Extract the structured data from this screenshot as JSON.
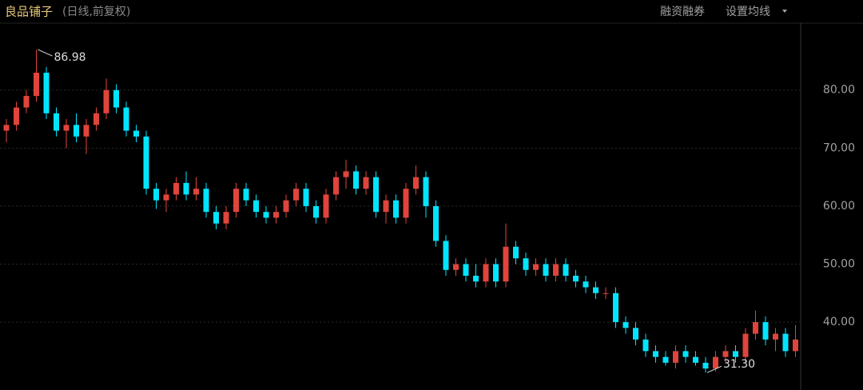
{
  "chart_data": {
    "type": "candlestick",
    "title": "良品铺子",
    "subtitle": "(日线,前复权)",
    "buttons": [
      "融资融券",
      "设置均线"
    ],
    "max_label": "86.98",
    "min_label": "31.30",
    "up_color": "#e0443c",
    "down_color": "#00e5ff",
    "ylim": [
      28.3,
      91.4
    ],
    "yticks": [
      {
        "value": 40,
        "label": "40.00"
      },
      {
        "value": 50,
        "label": "50.00"
      },
      {
        "value": 60,
        "label": "60.00"
      },
      {
        "value": 70,
        "label": "70.00"
      },
      {
        "value": 80,
        "label": "80.00"
      }
    ],
    "grid": true,
    "candles": [
      [
        73,
        75,
        71,
        74
      ],
      [
        74,
        78,
        73,
        77
      ],
      [
        77,
        80,
        76,
        79
      ],
      [
        79,
        86.98,
        78,
        83
      ],
      [
        83,
        84,
        75,
        76
      ],
      [
        76,
        77,
        72,
        73
      ],
      [
        73,
        75,
        70,
        74
      ],
      [
        74,
        76,
        71,
        72
      ],
      [
        72,
        75,
        69,
        74
      ],
      [
        74,
        77,
        73,
        76
      ],
      [
        76,
        82,
        75,
        80
      ],
      [
        80,
        81,
        76,
        77
      ],
      [
        77,
        78,
        72,
        73
      ],
      [
        73,
        74,
        71,
        72
      ],
      [
        72,
        73,
        62,
        63
      ],
      [
        63,
        64,
        59.5,
        61
      ],
      [
        61,
        63,
        59,
        62
      ],
      [
        62,
        65,
        61,
        64
      ],
      [
        64,
        66,
        61,
        62
      ],
      [
        62,
        65,
        61,
        63
      ],
      [
        63,
        64,
        58,
        59
      ],
      [
        59,
        60,
        56,
        57
      ],
      [
        57,
        60,
        56,
        59
      ],
      [
        59,
        64,
        58,
        63
      ],
      [
        63,
        64,
        60,
        61
      ],
      [
        61,
        62,
        58,
        59
      ],
      [
        59,
        60,
        57,
        58
      ],
      [
        58,
        60,
        57,
        59
      ],
      [
        59,
        62,
        58,
        61
      ],
      [
        61,
        64,
        60,
        63
      ],
      [
        63,
        64,
        59,
        60
      ],
      [
        60,
        61,
        57,
        58
      ],
      [
        58,
        63,
        57,
        62
      ],
      [
        62,
        66,
        61,
        65
      ],
      [
        65,
        68,
        63,
        66
      ],
      [
        66,
        67,
        62,
        63
      ],
      [
        63,
        66,
        62,
        65
      ],
      [
        65,
        66,
        58,
        59
      ],
      [
        59,
        62,
        57,
        61
      ],
      [
        61,
        62,
        57,
        58
      ],
      [
        58,
        64,
        57,
        63
      ],
      [
        63,
        67,
        62,
        65
      ],
      [
        65,
        66,
        58,
        60
      ],
      [
        60,
        61,
        53,
        54
      ],
      [
        54,
        55,
        48,
        49
      ],
      [
        49,
        51,
        48,
        50
      ],
      [
        50,
        51,
        47,
        48
      ],
      [
        48,
        50,
        46,
        47
      ],
      [
        47,
        51,
        46,
        50
      ],
      [
        50,
        51,
        46,
        47
      ],
      [
        47,
        57,
        46,
        53
      ],
      [
        53,
        54,
        50,
        51
      ],
      [
        51,
        52,
        48,
        49
      ],
      [
        49,
        51,
        48,
        50
      ],
      [
        50,
        51,
        47,
        48
      ],
      [
        48,
        51,
        47,
        50
      ],
      [
        50,
        51,
        47,
        48
      ],
      [
        48,
        49,
        46,
        47
      ],
      [
        47,
        48,
        45,
        46
      ],
      [
        46,
        47,
        44,
        45
      ],
      [
        45,
        46,
        44,
        45
      ],
      [
        45,
        46,
        39,
        40
      ],
      [
        40,
        41,
        38,
        39
      ],
      [
        39,
        40,
        36,
        37
      ],
      [
        37,
        38,
        34,
        35
      ],
      [
        35,
        36,
        33,
        34
      ],
      [
        34,
        35,
        32.5,
        33
      ],
      [
        33,
        36,
        32,
        35
      ],
      [
        35,
        36,
        33,
        34
      ],
      [
        34,
        35,
        32.5,
        33
      ],
      [
        33,
        34,
        31.3,
        32
      ],
      [
        32,
        35,
        31.5,
        34
      ],
      [
        34,
        36,
        33,
        35
      ],
      [
        35,
        36,
        33,
        34
      ],
      [
        34,
        39,
        33,
        38
      ],
      [
        38,
        42,
        37,
        40
      ],
      [
        40,
        41,
        36,
        37
      ],
      [
        37,
        39,
        35,
        38
      ],
      [
        38,
        39,
        34,
        35
      ],
      [
        35,
        39.5,
        34,
        37
      ]
    ]
  }
}
